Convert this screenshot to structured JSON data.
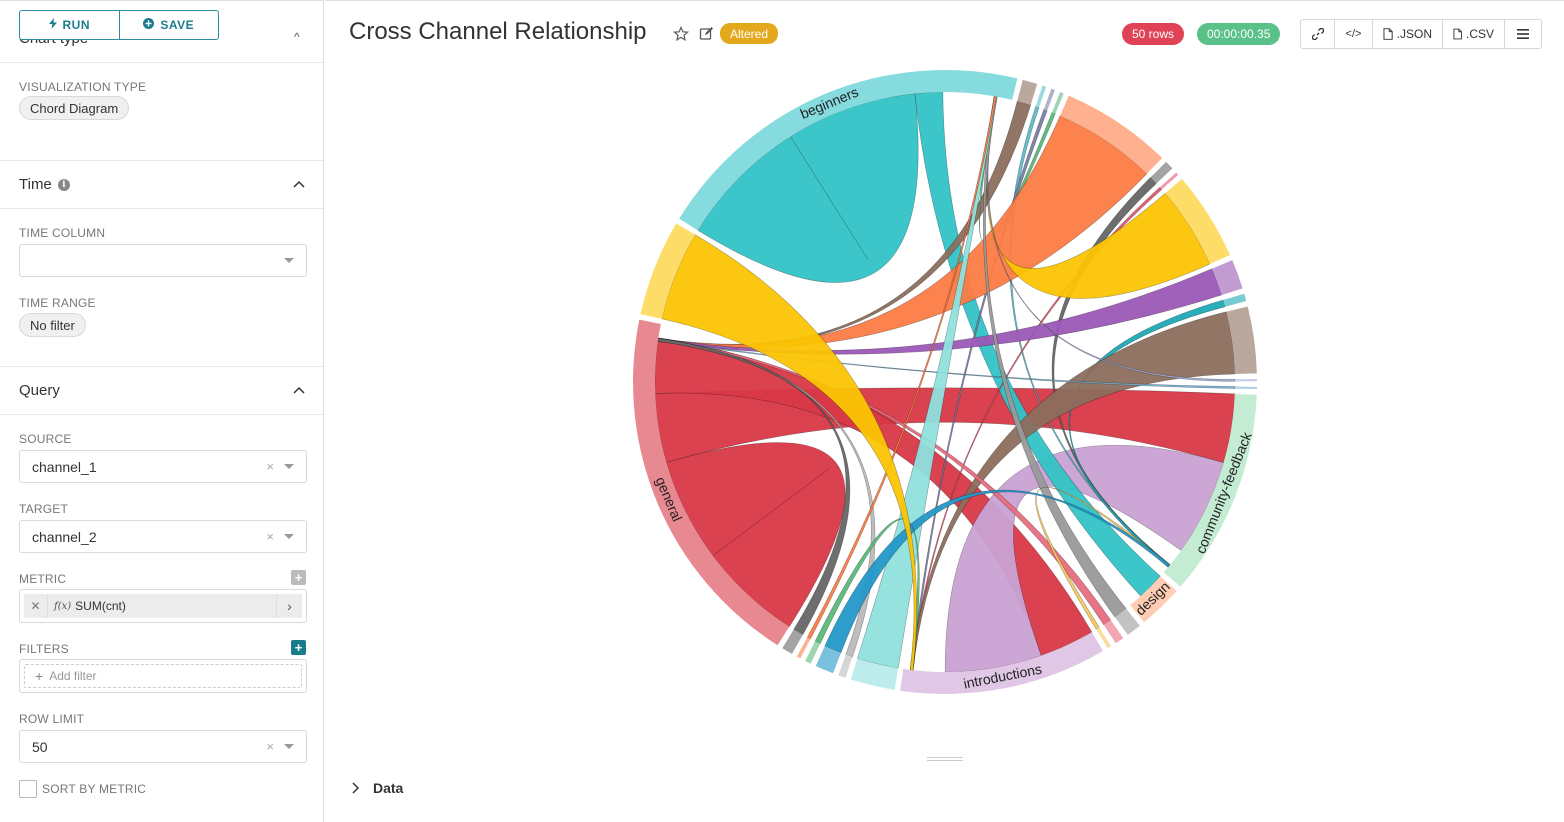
{
  "sidebar": {
    "run_label": "RUN",
    "save_label": "SAVE",
    "chart_type_label": "Chart type",
    "visualization_type_label": "VISUALIZATION TYPE",
    "visualization_type_value": "Chord Diagram",
    "time_section_title": "Time",
    "time_column_label": "TIME COLUMN",
    "time_column_value": "",
    "time_range_label": "TIME RANGE",
    "time_range_value": "No filter",
    "query_section_title": "Query",
    "source_label": "SOURCE",
    "source_value": "channel_1",
    "target_label": "TARGET",
    "target_value": "channel_2",
    "metric_label": "METRIC",
    "metric_fx": "f(x)",
    "metric_value": "SUM(cnt)",
    "filters_label": "FILTERS",
    "add_filter_placeholder": "Add filter",
    "row_limit_label": "ROW LIMIT",
    "row_limit_value": "50",
    "sort_by_metric_label": "SORT BY METRIC",
    "sort_by_metric_checked": false
  },
  "header": {
    "title": "Cross Channel Relationship",
    "altered_badge": "Altered",
    "rows_badge": "50 rows",
    "time_badge": "00:00:00.35",
    "json_label": ".JSON",
    "csv_label": ".CSV"
  },
  "colors": {
    "accent": "#1a7d8e",
    "rows_badge": "#e04355",
    "time_badge": "#5ac189",
    "altered_badge": "#e4a81d"
  },
  "chart_data": {
    "type": "chord",
    "groups": [
      {
        "name": "beginners",
        "color": "#33c3c6",
        "value": 52
      },
      {
        "name": "",
        "color": "#8c6e5d",
        "value": 2
      },
      {
        "name": "",
        "color": "#5dbdc8",
        "value": 0.5
      },
      {
        "name": "",
        "color": "#7a7fa5",
        "value": 0.5
      },
      {
        "name": "",
        "color": "#5ab97a",
        "value": 0.5
      },
      {
        "name": "",
        "color": "#fd7c45",
        "value": 15
      },
      {
        "name": "",
        "color": "#666666",
        "value": 1.2
      },
      {
        "name": "",
        "color": "#e3596f",
        "value": 0.4
      },
      {
        "name": "",
        "color": "#fbc403",
        "value": 12
      },
      {
        "name": "",
        "color": "#9b59b6",
        "value": 4
      },
      {
        "name": "",
        "color": "#1fa9b5",
        "value": 1
      },
      {
        "name": "",
        "color": "#8c6e5d",
        "value": 9
      },
      {
        "name": "",
        "color": "#a3acd6",
        "value": 0.3
      },
      {
        "name": "",
        "color": "#7ab3d6",
        "value": 0.3
      },
      {
        "name": "community-feedback",
        "color": "#9de0b6",
        "value": 28
      },
      {
        "name": "design",
        "color": "#fdac80",
        "value": 6
      },
      {
        "name": "",
        "color": "#999999",
        "value": 2
      },
      {
        "name": "",
        "color": "#e86d7f",
        "value": 1.2
      },
      {
        "name": "",
        "color": "#f5c760",
        "value": 0.5
      },
      {
        "name": "introductions",
        "color": "#c9a2d4",
        "value": 28
      },
      {
        "name": "",
        "color": "#8fe0dd",
        "value": 6
      },
      {
        "name": "",
        "color": "#bbbbbb",
        "value": 1
      },
      {
        "name": "",
        "color": "#2398c9",
        "value": 2.5
      },
      {
        "name": "",
        "color": "#5ab97a",
        "value": 0.8
      },
      {
        "name": "",
        "color": "#fd7c45",
        "value": 0.5
      },
      {
        "name": "",
        "color": "#666666",
        "value": 1.5
      },
      {
        "name": "general",
        "color": "#d93847",
        "value": 50
      },
      {
        "name": "",
        "color": "#fbc403",
        "value": 13
      }
    ],
    "chords": [
      {
        "source": "beginners",
        "target": "beginners",
        "value": 38
      },
      {
        "source": "general",
        "target": "general",
        "value": 30
      },
      {
        "source": "general",
        "target": "community-feedback",
        "value": 10
      },
      {
        "source": "general",
        "target": "introductions",
        "value": 8
      },
      {
        "source": "introductions",
        "target": "community-feedback",
        "value": 14
      },
      {
        "source": "beginners",
        "target": "design",
        "value": 4
      }
    ]
  },
  "data_section_label": "Data"
}
